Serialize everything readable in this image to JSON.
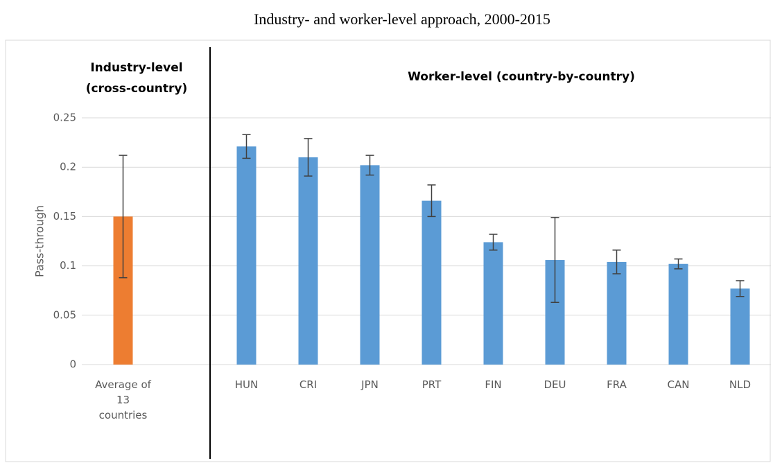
{
  "chart_data": {
    "type": "bar",
    "title": "Industry- and worker-level approach, 2000-2015",
    "left_header": [
      "Industry-level",
      "(cross-country)"
    ],
    "right_header": "Worker-level (country-by-country)",
    "ylabel": "Pass-through",
    "categories": [
      "Average of 13 countries",
      null,
      "HUN",
      "CRI",
      "JPN",
      "PRT",
      "FIN",
      "DEU",
      "FRA",
      "CAN",
      "NLD"
    ],
    "values": [
      0.15,
      null,
      0.221,
      0.21,
      0.202,
      0.166,
      0.124,
      0.106,
      0.104,
      0.102,
      0.077
    ],
    "errors": [
      0.062,
      null,
      0.012,
      0.019,
      0.01,
      0.016,
      0.008,
      0.043,
      0.012,
      0.005,
      0.008
    ],
    "colors": [
      "#ed7d31",
      null,
      "#5b9bd5",
      "#5b9bd5",
      "#5b9bd5",
      "#5b9bd5",
      "#5b9bd5",
      "#5b9bd5",
      "#5b9bd5",
      "#5b9bd5",
      "#5b9bd5"
    ],
    "ylim": [
      0,
      0.25
    ],
    "yticks": [
      0,
      0.05,
      0.1,
      0.15,
      0.2,
      0.25
    ],
    "grid": true
  }
}
